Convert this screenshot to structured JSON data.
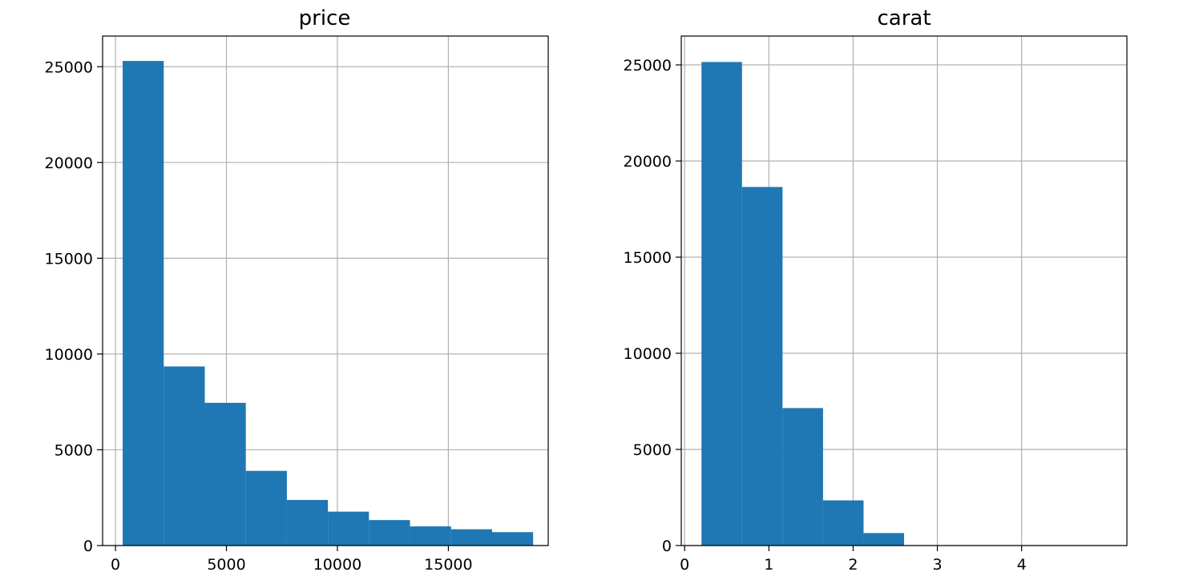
{
  "chart_data": [
    {
      "type": "bar",
      "title": "price",
      "xlabel": "",
      "ylabel": "",
      "grid": true,
      "bar_color": "#1f77b4",
      "xlim": [
        -580,
        19500
      ],
      "ylim": [
        0,
        26600
      ],
      "xticks": [
        0,
        5000,
        10000,
        15000
      ],
      "yticks": [
        0,
        5000,
        10000,
        15000,
        20000,
        25000
      ],
      "bin_edges": [
        326,
        2175,
        4025,
        5874,
        7724,
        9573,
        11422,
        13272,
        15121,
        16971,
        18820
      ],
      "values": [
        25300,
        9350,
        7450,
        3900,
        2380,
        1770,
        1330,
        1000,
        850,
        700
      ]
    },
    {
      "type": "bar",
      "title": "carat",
      "xlabel": "",
      "ylabel": "",
      "grid": true,
      "bar_color": "#1f77b4",
      "xlim": [
        -0.04,
        5.25
      ],
      "ylim": [
        0,
        26500
      ],
      "xticks": [
        0,
        1,
        2,
        3,
        4
      ],
      "yticks": [
        0,
        5000,
        10000,
        15000,
        20000,
        25000
      ],
      "bin_edges": [
        0.2,
        0.681,
        1.162,
        1.643,
        2.124,
        2.605,
        3.086,
        3.567,
        4.048,
        4.529,
        5.01
      ],
      "values": [
        25150,
        18650,
        7150,
        2350,
        650,
        0,
        0,
        0,
        0,
        0
      ]
    }
  ]
}
